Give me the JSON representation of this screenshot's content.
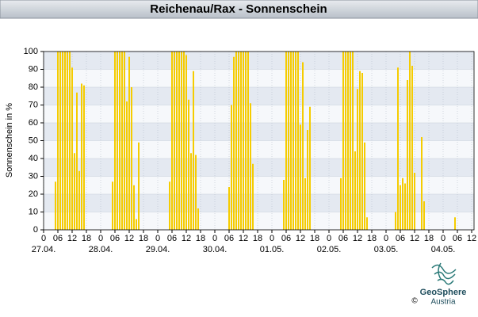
{
  "chart_data": {
    "type": "bar",
    "title": "Reichenau/Rax - Sonnenschein",
    "y_label": "Sonnenschein in %",
    "color": "#f5cc00",
    "grid": true,
    "x": [
      5,
      6,
      7,
      8,
      9,
      10,
      11,
      12,
      13,
      14,
      15,
      16,
      17,
      29,
      30,
      31,
      32,
      33,
      34,
      35,
      36,
      37,
      38,
      39,
      40,
      53,
      54,
      55,
      56,
      57,
      58,
      59,
      60,
      61,
      62,
      63,
      64,
      65,
      78,
      79,
      80,
      81,
      82,
      83,
      84,
      85,
      86,
      87,
      88,
      101,
      102,
      103,
      104,
      105,
      106,
      107,
      108,
      109,
      110,
      111,
      112,
      125,
      126,
      127,
      128,
      129,
      130,
      131,
      132,
      133,
      134,
      135,
      136,
      148,
      149,
      150,
      151,
      152,
      153,
      154,
      155,
      156,
      159,
      160,
      173
    ],
    "values": [
      27,
      100,
      100,
      100,
      100,
      100,
      100,
      91,
      43,
      77,
      33,
      82,
      81,
      27,
      100,
      100,
      100,
      100,
      100,
      72,
      97,
      80,
      25,
      6,
      49,
      27,
      100,
      100,
      100,
      100,
      100,
      100,
      98,
      73,
      43,
      89,
      42,
      12,
      24,
      70,
      97,
      100,
      100,
      100,
      100,
      100,
      100,
      71,
      37,
      28,
      100,
      100,
      100,
      100,
      100,
      100,
      59,
      94,
      29,
      56,
      69,
      29,
      100,
      100,
      100,
      100,
      100,
      44,
      79,
      89,
      88,
      49,
      7,
      10,
      91,
      25,
      29,
      26,
      84,
      100,
      92,
      32,
      52,
      16,
      7
    ],
    "xlim": [
      0,
      181
    ],
    "ylim": [
      0,
      100
    ],
    "yticks": [
      0,
      10,
      20,
      30,
      40,
      50,
      60,
      70,
      80,
      90,
      100
    ],
    "xticks": [
      0,
      {
        "value": 6,
        "label": "06"
      },
      12,
      18,
      {
        "value": 24,
        "label": "0"
      },
      {
        "value": 30,
        "label": "06"
      },
      {
        "value": 36,
        "label": "12"
      },
      {
        "value": 42,
        "label": "18"
      },
      {
        "value": 48,
        "label": "0"
      },
      {
        "value": 54,
        "label": "06"
      },
      {
        "value": 60,
        "label": "12"
      },
      {
        "value": 66,
        "label": "18"
      },
      {
        "value": 72,
        "label": "0"
      },
      {
        "value": 78,
        "label": "06"
      },
      {
        "value": 84,
        "label": "12"
      },
      {
        "value": 90,
        "label": "18"
      },
      {
        "value": 96,
        "label": "0"
      },
      {
        "value": 102,
        "label": "06"
      },
      {
        "value": 108,
        "label": "12"
      },
      {
        "value": 114,
        "label": "18"
      },
      {
        "value": 120,
        "label": "0"
      },
      {
        "value": 126,
        "label": "06"
      },
      {
        "value": 132,
        "label": "12"
      },
      {
        "value": 138,
        "label": "18"
      },
      {
        "value": 144,
        "label": "0"
      },
      {
        "value": 150,
        "label": "06"
      },
      {
        "value": 156,
        "label": "12"
      },
      {
        "value": 162,
        "label": "18"
      },
      {
        "value": 168,
        "label": "0"
      },
      {
        "value": 174,
        "label": "06"
      },
      {
        "value": 180,
        "label": "12"
      }
    ],
    "day_labels": [
      {
        "value": 0,
        "label": "27.04."
      },
      {
        "value": 24,
        "label": "28.04."
      },
      {
        "value": 48,
        "label": "29.04."
      },
      {
        "value": 72,
        "label": "30.04."
      },
      {
        "value": 96,
        "label": "01.05."
      },
      {
        "value": 120,
        "label": "02.05."
      },
      {
        "value": 144,
        "label": "03.05."
      },
      {
        "value": 168,
        "label": "04.05."
      }
    ]
  },
  "logo": {
    "name": "GeoSphere",
    "country": "Austria",
    "copyright": "©"
  }
}
